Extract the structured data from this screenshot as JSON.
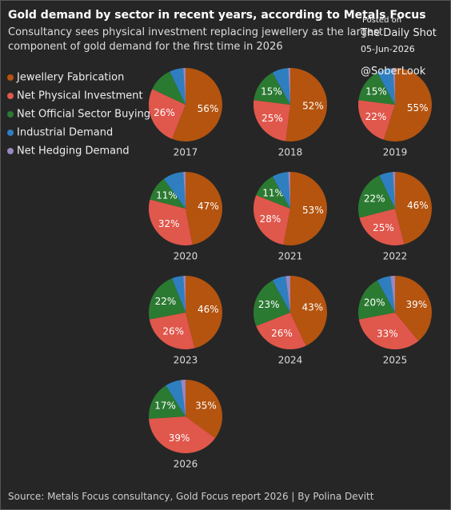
{
  "chart_data": {
    "type": "pie",
    "title": "Gold demand by sector in recent years, according to Metals Focus",
    "subtitle": "Consultancy sees physical investment replacing jewellery as the largest component of gold demand for the first time in 2026",
    "source": "Source: Metals Focus consultancy, Gold Focus report 2026 | By Polina Devitt",
    "watermark": [
      "Posted on",
      "The Daily Shot",
      "05-Jun-2026",
      "@SoberLook"
    ],
    "categories": [
      "Jewellery Fabrication",
      "Net Physical Investment",
      "Net Official Sector Buying",
      "Industrial Demand",
      "Net Hedging Demand"
    ],
    "colors": [
      "#b4540f",
      "#e0574c",
      "#2b7a32",
      "#2f7fc0",
      "#9887c0"
    ],
    "series": [
      {
        "name": "2017",
        "values": [
          56,
          26,
          11,
          6,
          1
        ],
        "value_labels": [
          "56%",
          "26%",
          null,
          null,
          null
        ]
      },
      {
        "name": "2018",
        "values": [
          52,
          25,
          15,
          7,
          1
        ],
        "value_labels": [
          "52%",
          "25%",
          "15%",
          null,
          null
        ]
      },
      {
        "name": "2019",
        "values": [
          55,
          22,
          15,
          7,
          1
        ],
        "value_labels": [
          "55%",
          "22%",
          "15%",
          null,
          null
        ]
      },
      {
        "name": "2020",
        "values": [
          47,
          32,
          11,
          9,
          1
        ],
        "value_labels": [
          "47%",
          "32%",
          "11%",
          null,
          null
        ]
      },
      {
        "name": "2021",
        "values": [
          53,
          28,
          11,
          7,
          1
        ],
        "value_labels": [
          "53%",
          "28%",
          "11%",
          null,
          null
        ]
      },
      {
        "name": "2022",
        "values": [
          46,
          25,
          22,
          6,
          1
        ],
        "value_labels": [
          "46%",
          "25%",
          "22%",
          null,
          null
        ]
      },
      {
        "name": "2023",
        "values": [
          46,
          26,
          22,
          5,
          1
        ],
        "value_labels": [
          "46%",
          "26%",
          "22%",
          null,
          null
        ]
      },
      {
        "name": "2024",
        "values": [
          43,
          26,
          23,
          6,
          2
        ],
        "value_labels": [
          "43%",
          "26%",
          "23%",
          null,
          null
        ]
      },
      {
        "name": "2025",
        "values": [
          39,
          33,
          20,
          6,
          2
        ],
        "value_labels": [
          "39%",
          "33%",
          "20%",
          null,
          null
        ]
      },
      {
        "name": "2026",
        "values": [
          35,
          39,
          17,
          7,
          2
        ],
        "value_labels": [
          "35%",
          "39%",
          "17%",
          null,
          null
        ]
      }
    ]
  }
}
